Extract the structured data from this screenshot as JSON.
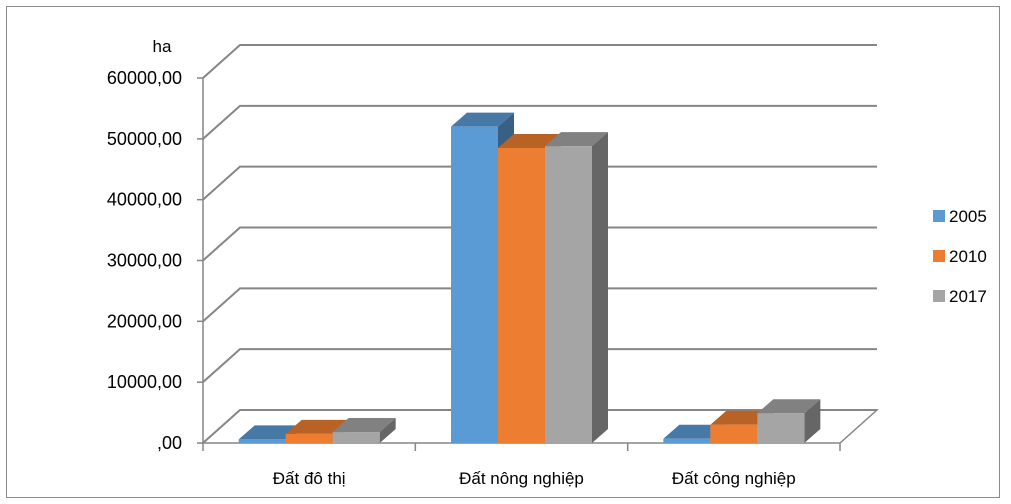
{
  "chart_data": {
    "type": "bar",
    "title": "",
    "ylabel": "ha",
    "xlabel": "",
    "categories": [
      "Đất đô thị",
      "Đất nông nghiệp",
      "Đất công nghiệp"
    ],
    "series": [
      {
        "name": "2005",
        "values": [
          600,
          52000,
          700
        ],
        "color": "#5B9BD5"
      },
      {
        "name": "2010",
        "values": [
          1500,
          48500,
          3000
        ],
        "color": "#ED7D31"
      },
      {
        "name": "2017",
        "values": [
          1800,
          48800,
          4900
        ],
        "color": "#A5A5A5"
      }
    ],
    "ylim": [
      0,
      60000
    ],
    "yticks": [
      ",00",
      "10000,00",
      "20000,00",
      "30000,00",
      "40000,00",
      "50000,00",
      "60000,00"
    ],
    "grid": true,
    "legend_position": "right",
    "style": "3d-clustered-column"
  }
}
